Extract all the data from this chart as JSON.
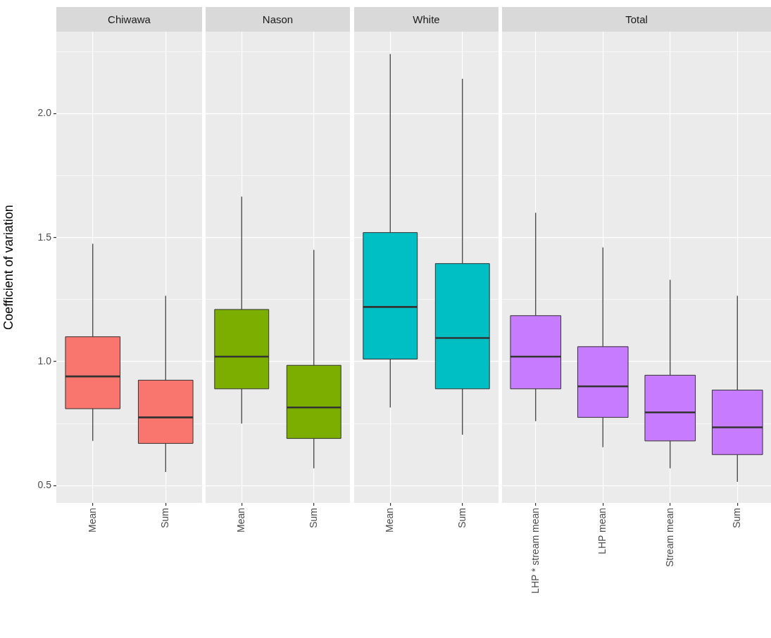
{
  "chart_data": [
    {
      "type": "box",
      "title": "Chiwawa",
      "ylabel": "Coefficient of variation",
      "categories": [
        "Mean",
        "Sum"
      ],
      "color": "#f8766d",
      "grid": true,
      "ylim": [
        0.43,
        2.33
      ],
      "yticks": [
        0.5,
        {
          "value": 0.75,
          "label": null
        },
        {
          "value": 1,
          "label": "1.0"
        },
        {
          "value": 1.25,
          "label": null
        },
        1.5,
        {
          "value": 1.75,
          "label": null
        },
        {
          "value": 2,
          "label": "2.0"
        },
        {
          "value": 2.25,
          "label": null
        }
      ],
      "boxes": [
        {
          "low": 0.68,
          "q1": 0.81,
          "median": 0.94,
          "q3": 1.1,
          "high": 1.475
        },
        {
          "low": 0.555,
          "q1": 0.67,
          "median": 0.775,
          "q3": 0.925,
          "high": 1.265
        }
      ]
    },
    {
      "type": "box",
      "title": "Nason",
      "categories": [
        "Mean",
        "Sum"
      ],
      "color": "#7cae00",
      "grid": true,
      "tick_labels": "x",
      "ylim": [
        0.43,
        2.33
      ],
      "yticks": [
        0.5,
        {
          "value": 0.75,
          "label": null
        },
        1,
        {
          "value": 1.25,
          "label": null
        },
        1.5,
        {
          "value": 1.75,
          "label": null
        },
        2,
        {
          "value": 2.25,
          "label": null
        }
      ],
      "boxes": [
        {
          "low": 0.75,
          "q1": 0.89,
          "median": 1.02,
          "q3": 1.21,
          "high": 1.665
        },
        {
          "low": 0.57,
          "q1": 0.69,
          "median": 0.815,
          "q3": 0.985,
          "high": 1.45
        }
      ]
    },
    {
      "type": "box",
      "title": "White",
      "categories": [
        "Mean",
        "Sum"
      ],
      "color": "#00bfc4",
      "grid": true,
      "tick_labels": "x",
      "ylim": [
        0.43,
        2.33
      ],
      "yticks": [
        0.5,
        {
          "value": 0.75,
          "label": null
        },
        1,
        {
          "value": 1.25,
          "label": null
        },
        1.5,
        {
          "value": 1.75,
          "label": null
        },
        2,
        {
          "value": 2.25,
          "label": null
        }
      ],
      "boxes": [
        {
          "low": 0.815,
          "q1": 1.01,
          "median": 1.22,
          "q3": 1.52,
          "high": 2.24
        },
        {
          "low": 0.705,
          "q1": 0.89,
          "median": 1.095,
          "q3": 1.395,
          "high": 2.14
        }
      ]
    },
    {
      "type": "box",
      "title": "Total",
      "categories": [
        "LHP * stream mean",
        "LHP mean",
        "Stream mean",
        "Sum"
      ],
      "color": "#c77cff",
      "grid": true,
      "tick_labels": "x",
      "ylim": [
        0.43,
        2.33
      ],
      "yticks": [
        0.5,
        {
          "value": 0.75,
          "label": null
        },
        1,
        {
          "value": 1.25,
          "label": null
        },
        1.5,
        {
          "value": 1.75,
          "label": null
        },
        2,
        {
          "value": 2.25,
          "label": null
        }
      ],
      "boxes": [
        {
          "low": 0.76,
          "q1": 0.89,
          "median": 1.02,
          "q3": 1.185,
          "high": 1.6
        },
        {
          "low": 0.655,
          "q1": 0.775,
          "median": 0.9,
          "q3": 1.06,
          "high": 1.46
        },
        {
          "low": 0.57,
          "q1": 0.68,
          "median": 0.795,
          "q3": 0.945,
          "high": 1.33
        },
        {
          "low": 0.515,
          "q1": 0.625,
          "median": 0.735,
          "q3": 0.885,
          "high": 1.265
        }
      ]
    }
  ]
}
